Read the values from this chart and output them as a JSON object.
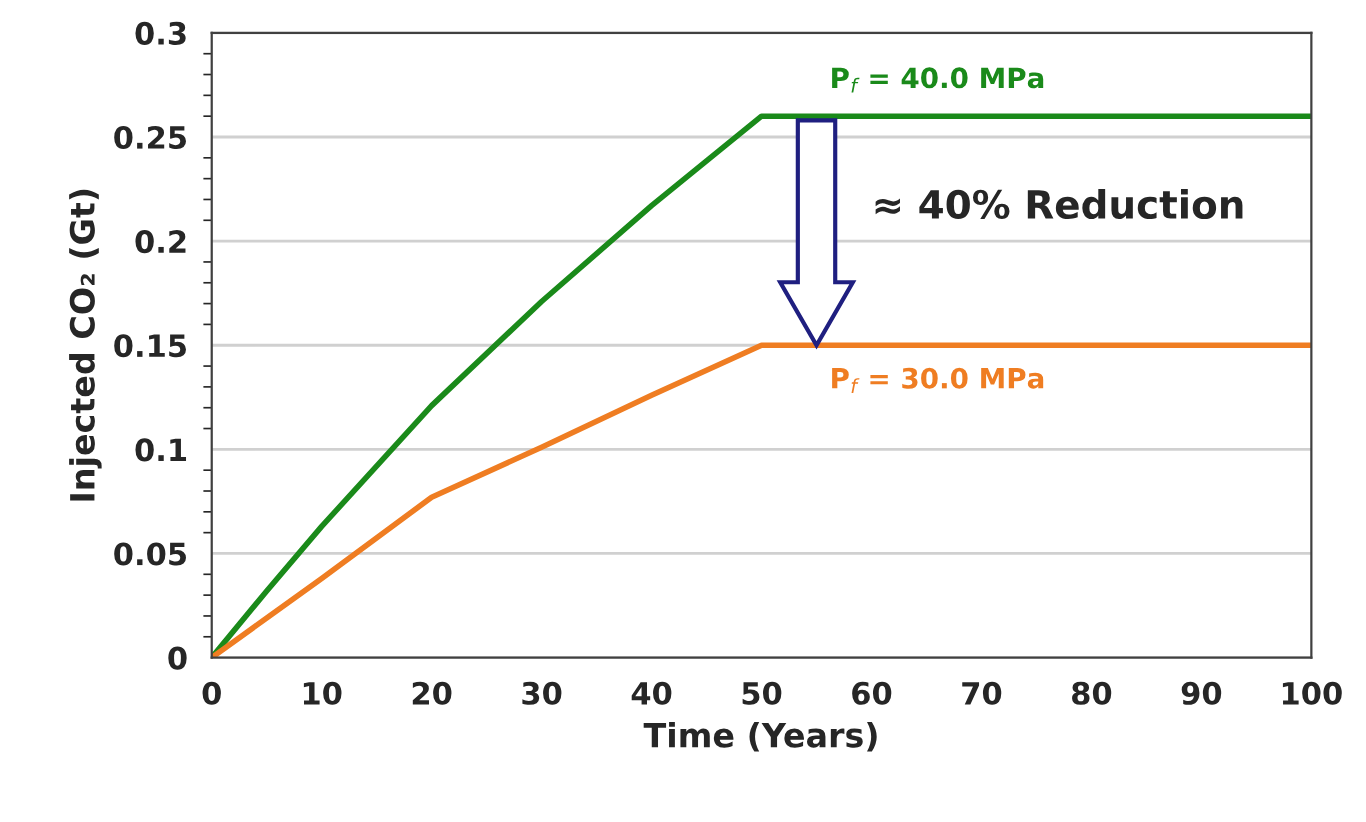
{
  "chart_data": {
    "type": "line",
    "xlabel": "Time (Years)",
    "ylabel": "Injected CO₂ (Gt)",
    "x": [
      0,
      5,
      10,
      20,
      30,
      40,
      50,
      100
    ],
    "series": [
      {
        "name": "P$_{f}$ = 40.0 MPa",
        "color": "#1a8a1a",
        "values": [
          0,
          0.032,
          0.063,
          0.121,
          0.171,
          0.217,
          0.26,
          0.26
        ]
      },
      {
        "name": "P$_{f}$ = 30.0 MPa",
        "color": "#ef7d22",
        "values": [
          0,
          0.019,
          0.038,
          0.077,
          0.101,
          0.126,
          0.15,
          0.15
        ]
      }
    ],
    "annotations": [
      "≈ 40% Reduction"
    ],
    "xlim": [
      0,
      100
    ],
    "xticks": [
      0,
      10,
      20,
      30,
      40,
      50,
      60,
      70,
      80,
      90,
      100
    ],
    "ylim": [
      0,
      0.3
    ],
    "yticks": [
      0,
      0.05,
      0.1,
      0.15,
      0.2,
      0.25,
      0.3
    ],
    "grid": "y",
    "legend": false,
    "marker": "none",
    "line_style": "solid"
  }
}
